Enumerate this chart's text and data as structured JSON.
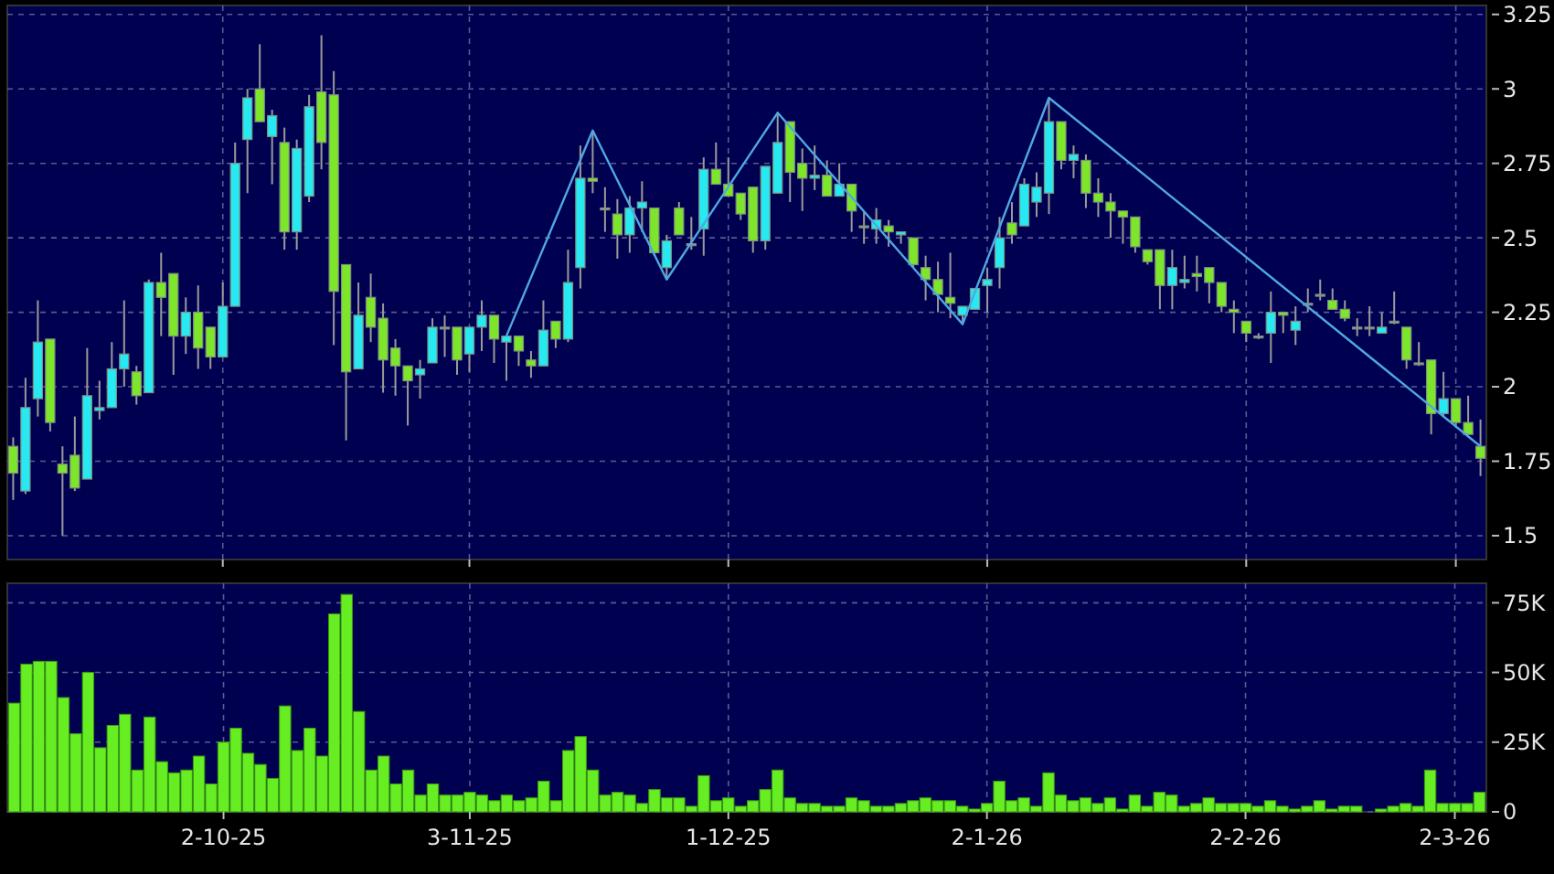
{
  "chart_data": [
    {
      "type": "candlestick",
      "tick_labels": "y",
      "grid": true,
      "ylim": [
        1.42,
        3.28
      ],
      "yticks": [
        1.5,
        1.75,
        2,
        2.25,
        2.5,
        2.75,
        3,
        3.25
      ],
      "categories": [
        null,
        null,
        null,
        null,
        null,
        null,
        null,
        null,
        null,
        null,
        null,
        null,
        null,
        null,
        null,
        null,
        null,
        null,
        null,
        null,
        null,
        null,
        null,
        null,
        null,
        null,
        null,
        null,
        null,
        null,
        null,
        null,
        null,
        null,
        null,
        null,
        null,
        null,
        null,
        null,
        null,
        null,
        null,
        null,
        null,
        null,
        null,
        null,
        null,
        null,
        null,
        null,
        null,
        null,
        null,
        null,
        null,
        null,
        null,
        null,
        null,
        null,
        null,
        null,
        null,
        null,
        null,
        null,
        null,
        null,
        null,
        null,
        null,
        null,
        null,
        null,
        null,
        null,
        null,
        null,
        null,
        null,
        null,
        null,
        null,
        null,
        null,
        null,
        null,
        null,
        null,
        null,
        null,
        null,
        null,
        null,
        null,
        null,
        null,
        null,
        null,
        null,
        null,
        null,
        null,
        null,
        null,
        null,
        null,
        null,
        null,
        null,
        null,
        null,
        null,
        null,
        null,
        null,
        null,
        null
      ],
      "ohlc": [
        [
          1.8,
          1.83,
          1.62,
          1.71
        ],
        [
          1.65,
          2.03,
          1.64,
          1.93
        ],
        [
          1.96,
          2.29,
          1.9,
          2.15
        ],
        [
          2.16,
          2.16,
          1.85,
          1.88
        ],
        [
          1.74,
          1.8,
          1.5,
          1.71
        ],
        [
          1.77,
          1.9,
          1.65,
          1.66
        ],
        [
          1.69,
          2.13,
          1.69,
          1.97
        ],
        [
          1.92,
          2.02,
          1.89,
          1.93
        ],
        [
          1.93,
          2.15,
          1.93,
          2.06
        ],
        [
          2.06,
          2.29,
          2.0,
          2.11
        ],
        [
          2.05,
          2.07,
          1.94,
          1.97
        ],
        [
          1.98,
          2.36,
          1.98,
          2.35
        ],
        [
          2.35,
          2.45,
          2.17,
          2.3
        ],
        [
          2.38,
          2.38,
          2.04,
          2.17
        ],
        [
          2.17,
          2.3,
          2.11,
          2.25
        ],
        [
          2.25,
          2.34,
          2.06,
          2.13
        ],
        [
          2.2,
          2.2,
          2.06,
          2.1
        ],
        [
          2.1,
          2.35,
          2.1,
          2.27
        ],
        [
          2.27,
          2.82,
          2.27,
          2.75
        ],
        [
          2.83,
          3.0,
          2.65,
          2.97
        ],
        [
          3.0,
          3.15,
          2.89,
          2.89
        ],
        [
          2.84,
          2.93,
          2.68,
          2.91
        ],
        [
          2.82,
          2.87,
          2.46,
          2.52
        ],
        [
          2.52,
          2.83,
          2.46,
          2.8
        ],
        [
          2.64,
          2.98,
          2.62,
          2.94
        ],
        [
          2.99,
          3.18,
          2.73,
          2.82
        ],
        [
          2.98,
          3.06,
          2.14,
          2.32
        ],
        [
          2.41,
          2.41,
          1.82,
          2.05
        ],
        [
          2.06,
          2.35,
          2.06,
          2.24
        ],
        [
          2.3,
          2.38,
          2.15,
          2.2
        ],
        [
          2.23,
          2.28,
          1.98,
          2.09
        ],
        [
          2.13,
          2.16,
          1.97,
          2.07
        ],
        [
          2.07,
          2.07,
          1.87,
          2.02
        ],
        [
          2.04,
          2.09,
          1.96,
          2.06
        ],
        [
          2.08,
          2.23,
          2.08,
          2.2
        ],
        [
          2.2,
          2.24,
          2.1,
          2.2
        ],
        [
          2.2,
          2.2,
          2.04,
          2.09
        ],
        [
          2.11,
          2.2,
          2.05,
          2.2
        ],
        [
          2.2,
          2.29,
          2.12,
          2.24
        ],
        [
          2.24,
          2.24,
          2.08,
          2.16
        ],
        [
          2.15,
          2.17,
          2.02,
          2.17
        ],
        [
          2.17,
          2.17,
          2.07,
          2.12
        ],
        [
          2.09,
          2.12,
          2.03,
          2.07
        ],
        [
          2.07,
          2.29,
          2.07,
          2.19
        ],
        [
          2.22,
          2.22,
          2.13,
          2.16
        ],
        [
          2.16,
          2.46,
          2.15,
          2.35
        ],
        [
          2.4,
          2.81,
          2.33,
          2.7
        ],
        [
          2.7,
          2.86,
          2.65,
          2.69
        ],
        [
          2.6,
          2.67,
          2.52,
          2.6
        ],
        [
          2.58,
          2.63,
          2.43,
          2.51
        ],
        [
          2.51,
          2.64,
          2.45,
          2.6
        ],
        [
          2.6,
          2.69,
          2.52,
          2.62
        ],
        [
          2.6,
          2.6,
          2.44,
          2.45
        ],
        [
          2.4,
          2.51,
          2.36,
          2.49
        ],
        [
          2.6,
          2.62,
          2.51,
          2.51
        ],
        [
          2.48,
          2.57,
          2.46,
          2.48
        ],
        [
          2.53,
          2.77,
          2.44,
          2.73
        ],
        [
          2.73,
          2.82,
          2.68,
          2.68
        ],
        [
          2.68,
          2.77,
          2.64,
          2.64
        ],
        [
          2.65,
          2.65,
          2.56,
          2.58
        ],
        [
          2.67,
          2.67,
          2.45,
          2.49
        ],
        [
          2.49,
          2.74,
          2.46,
          2.74
        ],
        [
          2.65,
          2.92,
          2.65,
          2.82
        ],
        [
          2.89,
          2.89,
          2.62,
          2.72
        ],
        [
          2.75,
          2.8,
          2.59,
          2.7
        ],
        [
          2.7,
          2.81,
          2.66,
          2.71
        ],
        [
          2.71,
          2.76,
          2.64,
          2.64
        ],
        [
          2.64,
          2.75,
          2.64,
          2.68
        ],
        [
          2.68,
          2.68,
          2.52,
          2.59
        ],
        [
          2.54,
          2.59,
          2.48,
          2.54
        ],
        [
          2.53,
          2.6,
          2.48,
          2.56
        ],
        [
          2.54,
          2.56,
          2.47,
          2.52
        ],
        [
          2.51,
          2.52,
          2.48,
          2.52
        ],
        [
          2.5,
          2.5,
          2.4,
          2.41
        ],
        [
          2.4,
          2.44,
          2.29,
          2.36
        ],
        [
          2.36,
          2.42,
          2.25,
          2.31
        ],
        [
          2.3,
          2.45,
          2.23,
          2.28
        ],
        [
          2.24,
          2.27,
          2.21,
          2.27
        ],
        [
          2.26,
          2.33,
          2.26,
          2.33
        ],
        [
          2.34,
          2.4,
          2.25,
          2.36
        ],
        [
          2.4,
          2.57,
          2.33,
          2.5
        ],
        [
          2.55,
          2.62,
          2.48,
          2.51
        ],
        [
          2.54,
          2.7,
          2.54,
          2.68
        ],
        [
          2.62,
          2.72,
          2.57,
          2.67
        ],
        [
          2.65,
          2.97,
          2.58,
          2.89
        ],
        [
          2.89,
          2.89,
          2.73,
          2.76
        ],
        [
          2.76,
          2.81,
          2.7,
          2.78
        ],
        [
          2.76,
          2.78,
          2.6,
          2.65
        ],
        [
          2.65,
          2.7,
          2.57,
          2.62
        ],
        [
          2.62,
          2.65,
          2.5,
          2.59
        ],
        [
          2.59,
          2.59,
          2.48,
          2.57
        ],
        [
          2.57,
          2.57,
          2.45,
          2.47
        ],
        [
          2.46,
          2.46,
          2.41,
          2.42
        ],
        [
          2.46,
          2.46,
          2.26,
          2.34
        ],
        [
          2.34,
          2.46,
          2.26,
          2.4
        ],
        [
          2.35,
          2.44,
          2.33,
          2.36
        ],
        [
          2.38,
          2.44,
          2.32,
          2.37
        ],
        [
          2.4,
          2.4,
          2.28,
          2.35
        ],
        [
          2.35,
          2.35,
          2.25,
          2.27
        ],
        [
          2.26,
          2.29,
          2.18,
          2.25
        ],
        [
          2.22,
          2.22,
          2.15,
          2.18
        ],
        [
          2.17,
          2.18,
          2.16,
          2.17
        ],
        [
          2.18,
          2.32,
          2.08,
          2.25
        ],
        [
          2.25,
          2.25,
          2.18,
          2.24
        ],
        [
          2.19,
          2.27,
          2.14,
          2.22
        ],
        [
          2.28,
          2.33,
          2.25,
          2.28
        ],
        [
          2.31,
          2.36,
          2.29,
          2.31
        ],
        [
          2.29,
          2.33,
          2.26,
          2.26
        ],
        [
          2.26,
          2.29,
          2.22,
          2.23
        ],
        [
          2.2,
          2.23,
          2.17,
          2.2
        ],
        [
          2.2,
          2.27,
          2.17,
          2.2
        ],
        [
          2.18,
          2.25,
          2.18,
          2.2
        ],
        [
          2.22,
          2.32,
          2.21,
          2.22
        ],
        [
          2.2,
          2.2,
          2.06,
          2.09
        ],
        [
          2.08,
          2.15,
          2.07,
          2.08
        ],
        [
          2.09,
          2.09,
          1.84,
          1.91
        ],
        [
          1.91,
          2.05,
          1.9,
          1.96
        ],
        [
          1.96,
          1.96,
          1.87,
          1.88
        ],
        [
          1.88,
          1.97,
          1.84,
          1.84
        ],
        [
          1.8,
          1.89,
          1.7,
          1.76
        ]
      ],
      "colors": [
        "#7ee62a",
        "#26e9f2",
        "#26e9f2",
        "#7ee62a",
        "#7ee62a",
        "#7ee62a",
        "#26e9f2",
        "#26e9f2",
        "#26e9f2",
        "#26e9f2",
        "#7ee62a",
        "#26e9f2",
        "#7ee62a",
        "#7ee62a",
        "#26e9f2",
        "#7ee62a",
        "#7ee62a",
        "#26e9f2",
        "#26e9f2",
        "#26e9f2",
        "#7ee62a",
        "#26e9f2",
        "#7ee62a",
        "#26e9f2",
        "#26e9f2",
        "#7ee62a",
        "#7ee62a",
        "#7ee62a",
        "#26e9f2",
        "#7ee62a",
        "#7ee62a",
        "#7ee62a",
        "#7ee62a",
        "#26e9f2",
        "#26e9f2",
        "#9a9a9a",
        "#7ee62a",
        "#26e9f2",
        "#26e9f2",
        "#7ee62a",
        "#26e9f2",
        "#7ee62a",
        "#7ee62a",
        "#26e9f2",
        "#7ee62a",
        "#26e9f2",
        "#26e9f2",
        "#7ee62a",
        "#9a9a9a",
        "#7ee62a",
        "#26e9f2",
        "#26e9f2",
        "#7ee62a",
        "#26e9f2",
        "#7ee62a",
        "#9a9a9a",
        "#26e9f2",
        "#7ee62a",
        "#7ee62a",
        "#7ee62a",
        "#7ee62a",
        "#26e9f2",
        "#26e9f2",
        "#7ee62a",
        "#7ee62a",
        "#26e9f2",
        "#7ee62a",
        "#26e9f2",
        "#7ee62a",
        "#9a9a9a",
        "#26e9f2",
        "#7ee62a",
        "#26e9f2",
        "#7ee62a",
        "#7ee62a",
        "#7ee62a",
        "#7ee62a",
        "#26e9f2",
        "#26e9f2",
        "#26e9f2",
        "#26e9f2",
        "#7ee62a",
        "#26e9f2",
        "#26e9f2",
        "#26e9f2",
        "#7ee62a",
        "#26e9f2",
        "#7ee62a",
        "#7ee62a",
        "#7ee62a",
        "#7ee62a",
        "#7ee62a",
        "#7ee62a",
        "#7ee62a",
        "#26e9f2",
        "#26e9f2",
        "#7ee62a",
        "#7ee62a",
        "#7ee62a",
        "#7ee62a",
        "#7ee62a",
        "#9a9a9a",
        "#26e9f2",
        "#7ee62a",
        "#26e9f2",
        "#9a9a9a",
        "#9a9a9a",
        "#7ee62a",
        "#7ee62a",
        "#9a9a9a",
        "#9a9a9a",
        "#26e9f2",
        "#9a9a9a",
        "#7ee62a",
        "#9a9a9a",
        "#7ee62a",
        "#26e9f2",
        "#7ee62a",
        "#7ee62a",
        "#7ee62a"
      ],
      "series": [
        {
          "type": "line",
          "color": "#4ea8e2",
          "values": [
            null,
            null,
            null,
            null,
            null,
            null,
            null,
            null,
            null,
            null,
            null,
            null,
            null,
            null,
            null,
            null,
            null,
            null,
            null,
            null,
            null,
            null,
            null,
            null,
            null,
            null,
            null,
            null,
            null,
            null,
            null,
            null,
            null,
            null,
            null,
            null,
            null,
            null,
            null,
            null,
            2.17,
            null,
            null,
            null,
            null,
            null,
            null,
            2.86,
            null,
            null,
            null,
            null,
            null,
            2.36,
            null,
            null,
            null,
            null,
            null,
            null,
            null,
            null,
            2.92,
            null,
            null,
            null,
            null,
            null,
            null,
            null,
            null,
            null,
            null,
            null,
            null,
            null,
            null,
            2.21,
            null,
            null,
            null,
            null,
            null,
            null,
            2.97,
            null,
            null,
            null,
            null,
            null,
            null,
            null,
            null,
            null,
            null,
            null,
            null,
            null,
            null,
            null,
            null,
            null,
            null,
            null,
            null,
            null,
            null,
            null,
            null,
            null,
            null,
            null,
            null,
            null,
            null,
            null,
            null,
            null,
            null,
            1.8
          ]
        }
      ]
    },
    {
      "type": "bar",
      "grid": true,
      "ylim": [
        0,
        82000
      ],
      "color": "#66ee22",
      "yticks": [
        0,
        {
          "value": 25000,
          "label": "25K"
        },
        {
          "value": 50000,
          "label": "50K"
        },
        {
          "value": 75000,
          "label": "75K"
        }
      ],
      "categories": [
        null,
        null,
        null,
        null,
        null,
        null,
        null,
        null,
        null,
        null,
        null,
        null,
        null,
        null,
        null,
        null,
        null,
        "2-10-25",
        null,
        null,
        null,
        null,
        null,
        null,
        null,
        null,
        null,
        null,
        null,
        null,
        null,
        null,
        null,
        null,
        null,
        null,
        null,
        "3-11-25",
        null,
        null,
        null,
        null,
        null,
        null,
        null,
        null,
        null,
        null,
        null,
        null,
        null,
        null,
        null,
        null,
        null,
        null,
        null,
        null,
        "1-12-25",
        null,
        null,
        null,
        null,
        null,
        null,
        null,
        null,
        null,
        null,
        null,
        null,
        null,
        null,
        null,
        null,
        null,
        null,
        null,
        null,
        "2-1-26",
        null,
        null,
        null,
        null,
        null,
        null,
        null,
        null,
        null,
        null,
        null,
        null,
        null,
        null,
        null,
        null,
        null,
        null,
        null,
        null,
        "2-2-26",
        null,
        null,
        null,
        null,
        null,
        null,
        null,
        null,
        null,
        null,
        null,
        null,
        null,
        null,
        null,
        null,
        "2-3-26",
        null,
        null
      ],
      "values": [
        39000,
        53000,
        54000,
        54000,
        41000,
        28000,
        50000,
        23000,
        31000,
        35000,
        15000,
        34000,
        18000,
        14000,
        15000,
        20000,
        10000,
        25000,
        30000,
        21000,
        17000,
        12000,
        38000,
        22000,
        30000,
        20000,
        71000,
        78000,
        36000,
        15000,
        20000,
        10000,
        15000,
        6000,
        10000,
        6000,
        6000,
        7000,
        6000,
        4000,
        6000,
        4000,
        5000,
        11000,
        4000,
        22000,
        27000,
        15000,
        6000,
        7000,
        6000,
        3000,
        8000,
        5000,
        5000,
        2000,
        13000,
        4000,
        5000,
        2000,
        4000,
        8000,
        15000,
        5000,
        3000,
        3000,
        2000,
        2000,
        5000,
        4000,
        2000,
        2000,
        3000,
        4000,
        5000,
        4000,
        4000,
        2000,
        1000,
        3000,
        11000,
        4000,
        5000,
        2000,
        14000,
        6000,
        4000,
        5000,
        3000,
        5000,
        1000,
        6000,
        2000,
        7000,
        6000,
        2000,
        3000,
        5000,
        3000,
        3000,
        3000,
        2000,
        4000,
        2000,
        1000,
        2000,
        4000,
        1000,
        2000,
        2000,
        0,
        1000,
        2000,
        3000,
        2000,
        15000,
        3000,
        3000,
        3000,
        7000
      ]
    }
  ]
}
